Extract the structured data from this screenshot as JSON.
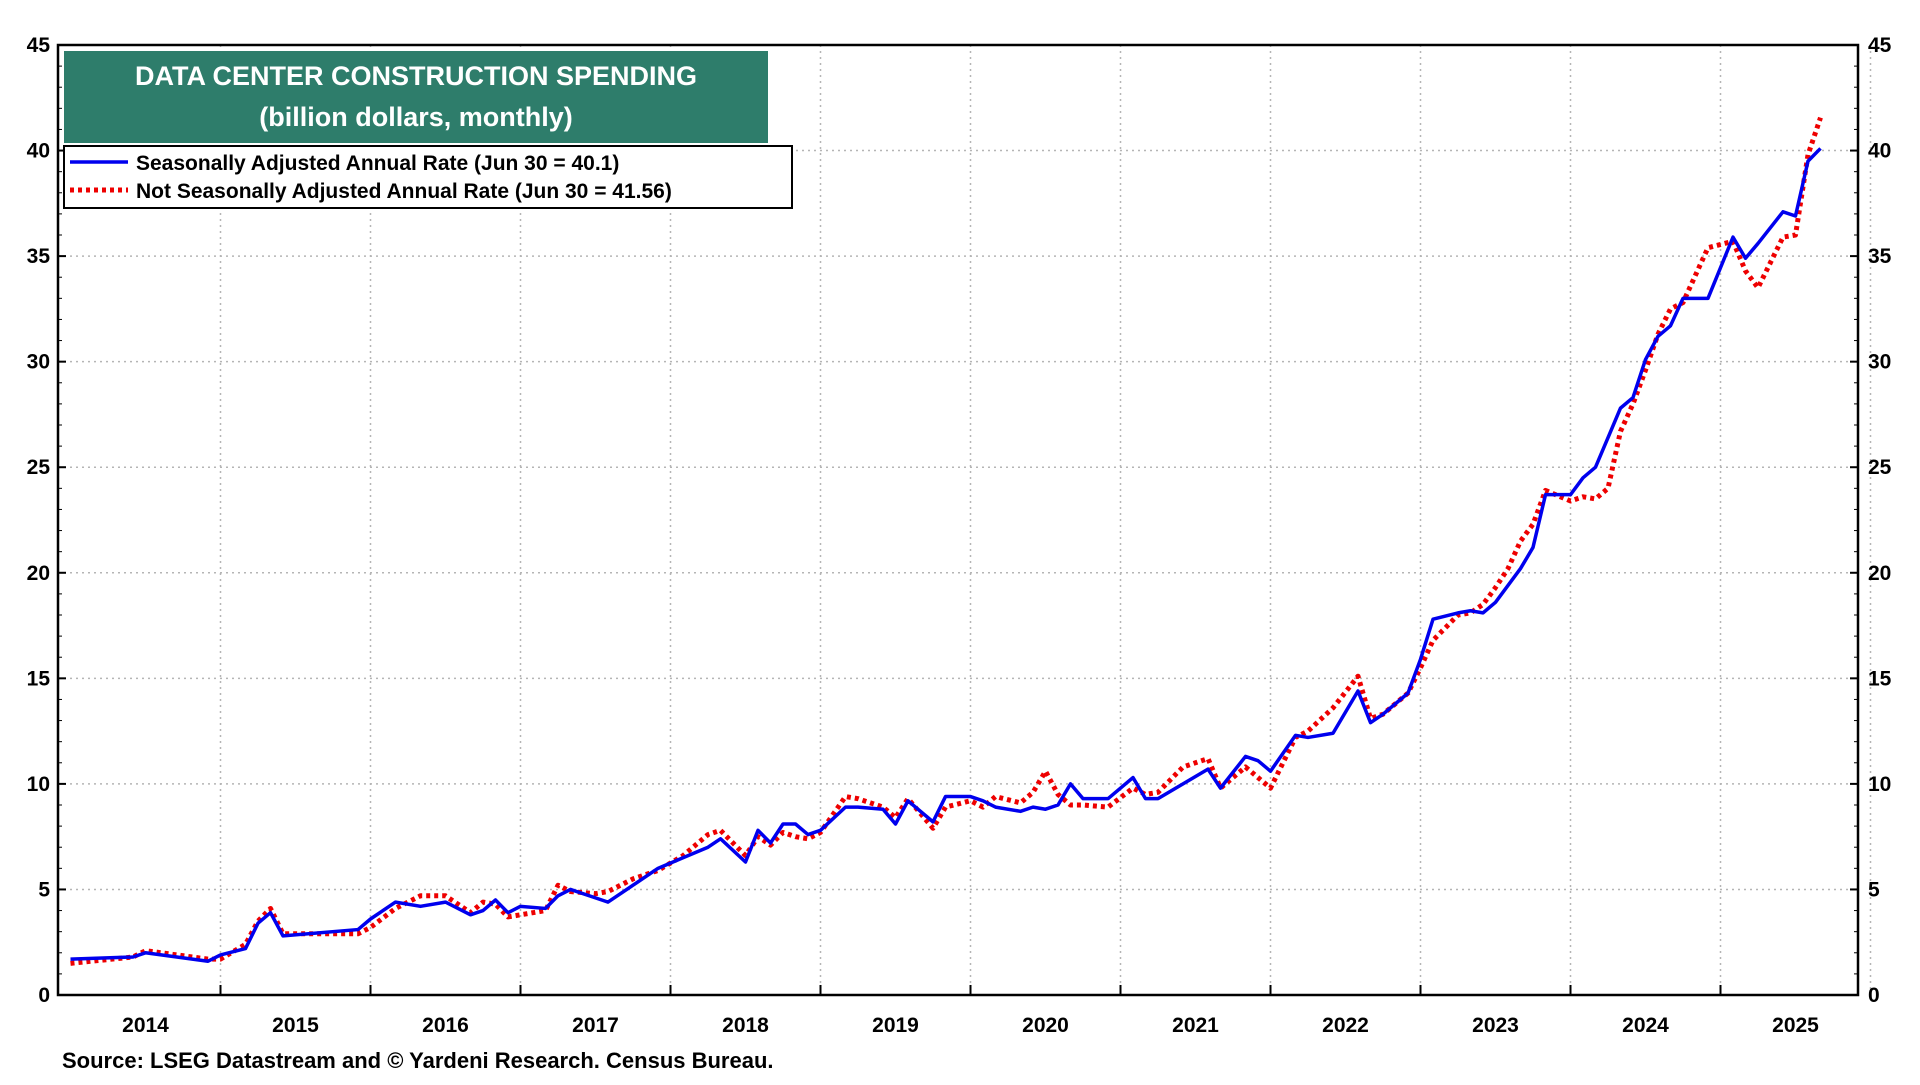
{
  "chart_data": {
    "type": "line",
    "title": "DATA CENTER CONSTRUCTION SPENDING",
    "subtitle": "(billion dollars, monthly)",
    "xlabel": "",
    "ylabel": "",
    "ylim": [
      0,
      45
    ],
    "yticks": [
      0,
      5,
      10,
      15,
      20,
      25,
      30,
      35,
      40,
      45
    ],
    "xlim": [
      "2013-12",
      "2025-12"
    ],
    "x_tick_labels": [
      "2014",
      "2015",
      "2016",
      "2017",
      "2018",
      "2019",
      "2020",
      "2021",
      "2022",
      "2023",
      "2024",
      "2025"
    ],
    "grid": true,
    "legend_position": "top-left",
    "source": "Source: LSEG Datastream and © Yardeni Research. Census Bureau.",
    "colors": {
      "title_box": "#2e7d6b",
      "sa_line": "#0000ee",
      "nsa_line": "#ee0000"
    },
    "series": [
      {
        "name": "Seasonally Adjusted Annual Rate (Jun 30 = 40.1)",
        "style": "solid",
        "x": [
          "2014-01",
          "2014-06",
          "2014-07",
          "2014-12",
          "2015-01",
          "2015-03",
          "2015-04",
          "2015-05",
          "2015-06",
          "2015-12",
          "2016-01",
          "2016-03",
          "2016-05",
          "2016-07",
          "2016-09",
          "2016-10",
          "2016-11",
          "2016-12",
          "2017-01",
          "2017-03",
          "2017-04",
          "2017-05",
          "2017-07",
          "2017-08",
          "2017-10",
          "2017-12",
          "2018-02",
          "2018-04",
          "2018-05",
          "2018-07",
          "2018-08",
          "2018-09",
          "2018-10",
          "2018-11",
          "2018-12",
          "2019-01",
          "2019-03",
          "2019-04",
          "2019-06",
          "2019-07",
          "2019-08",
          "2019-10",
          "2019-11",
          "2020-01",
          "2020-02",
          "2020-03",
          "2020-05",
          "2020-06",
          "2020-07",
          "2020-08",
          "2020-09",
          "2020-10",
          "2020-12",
          "2021-02",
          "2021-03",
          "2021-04",
          "2021-06",
          "2021-08",
          "2021-09",
          "2021-11",
          "2021-12",
          "2022-01",
          "2022-03",
          "2022-04",
          "2022-06",
          "2022-08",
          "2022-09",
          "2022-10",
          "2022-12",
          "2023-01",
          "2023-02",
          "2023-04",
          "2023-05",
          "2023-06",
          "2023-07",
          "2023-08",
          "2023-09",
          "2023-10",
          "2023-11",
          "2024-01",
          "2024-02",
          "2024-03",
          "2024-04",
          "2024-05",
          "2024-06",
          "2024-07",
          "2024-08",
          "2024-09",
          "2024-10",
          "2024-12",
          "2025-02",
          "2025-03",
          "2025-04",
          "2025-06"
        ],
        "values": [
          1.7,
          1.8,
          2.0,
          1.6,
          1.9,
          2.2,
          3.4,
          3.9,
          2.8,
          3.1,
          3.6,
          4.4,
          4.2,
          4.4,
          3.8,
          4.0,
          4.5,
          3.9,
          4.2,
          4.1,
          4.7,
          5.0,
          4.6,
          4.4,
          5.2,
          6.0,
          6.5,
          7.0,
          7.4,
          6.3,
          7.8,
          7.2,
          8.1,
          8.1,
          7.6,
          7.8,
          8.9,
          8.9,
          8.8,
          8.1,
          9.2,
          8.2,
          9.4,
          9.4,
          9.2,
          8.9,
          8.7,
          8.9,
          8.8,
          9.0,
          10.0,
          9.3,
          9.3,
          10.3,
          9.3,
          9.3,
          10.0,
          10.7,
          9.8,
          11.3,
          11.1,
          10.6,
          12.3,
          12.2,
          12.4,
          14.4,
          12.9,
          13.3,
          14.3,
          15.9,
          17.8,
          18.1,
          18.2,
          18.1,
          18.6,
          19.4,
          20.2,
          21.2,
          23.7,
          23.7,
          24.5,
          25.0,
          26.4,
          27.8,
          28.3,
          30.1,
          31.2,
          31.7,
          33.0,
          33.0,
          35.9,
          34.9,
          35.6,
          37.1
        ],
        "values_tail_note": "",
        "tail_x": [
          "2025-07",
          "2025-08",
          "2025-09"
        ],
        "tail_values": [
          36.9,
          39.5,
          40.1
        ]
      },
      {
        "name": "Not Seasonally Adjusted Annual Rate (Jun 30 = 41.56)",
        "style": "dotted",
        "x": [
          "2014-01",
          "2014-06",
          "2014-07",
          "2014-12",
          "2015-01",
          "2015-03",
          "2015-04",
          "2015-05",
          "2015-06",
          "2015-12",
          "2016-01",
          "2016-03",
          "2016-05",
          "2016-07",
          "2016-09",
          "2016-10",
          "2016-11",
          "2016-12",
          "2017-01",
          "2017-03",
          "2017-04",
          "2017-05",
          "2017-07",
          "2017-08",
          "2017-10",
          "2017-12",
          "2018-02",
          "2018-04",
          "2018-05",
          "2018-07",
          "2018-08",
          "2018-09",
          "2018-10",
          "2018-11",
          "2018-12",
          "2019-01",
          "2019-03",
          "2019-04",
          "2019-06",
          "2019-07",
          "2019-08",
          "2019-10",
          "2019-11",
          "2020-01",
          "2020-02",
          "2020-03",
          "2020-05",
          "2020-06",
          "2020-07",
          "2020-08",
          "2020-09",
          "2020-10",
          "2020-12",
          "2021-02",
          "2021-03",
          "2021-04",
          "2021-06",
          "2021-08",
          "2021-09",
          "2021-11",
          "2021-12",
          "2022-01",
          "2022-03",
          "2022-04",
          "2022-06",
          "2022-08",
          "2022-09",
          "2022-10",
          "2022-12",
          "2023-01",
          "2023-02",
          "2023-04",
          "2023-05",
          "2023-06",
          "2023-07",
          "2023-08",
          "2023-09",
          "2023-10",
          "2023-11",
          "2024-01",
          "2024-02",
          "2024-03",
          "2024-04",
          "2024-05",
          "2024-06",
          "2024-07",
          "2024-08",
          "2024-09",
          "2024-10",
          "2024-12",
          "2025-02",
          "2025-03",
          "2025-04",
          "2025-06"
        ],
        "values": [
          1.5,
          1.8,
          2.1,
          1.7,
          1.7,
          2.4,
          3.5,
          4.1,
          2.9,
          2.9,
          3.2,
          4.1,
          4.7,
          4.7,
          3.9,
          4.4,
          4.3,
          3.7,
          3.8,
          4.0,
          5.2,
          4.9,
          4.8,
          4.9,
          5.5,
          5.9,
          6.6,
          7.6,
          7.8,
          6.6,
          7.5,
          7.1,
          7.7,
          7.5,
          7.4,
          7.7,
          9.4,
          9.3,
          8.9,
          8.4,
          9.3,
          7.9,
          8.9,
          9.2,
          8.9,
          9.4,
          9.1,
          9.6,
          10.6,
          9.5,
          9.0,
          9.0,
          8.9,
          9.8,
          9.5,
          9.6,
          10.8,
          11.2,
          9.8,
          10.8,
          10.3,
          9.8,
          12.2,
          12.5,
          13.6,
          15.1,
          13.1,
          13.3,
          14.3,
          15.5,
          16.8,
          18.0,
          18.1,
          18.5,
          19.3,
          20.2,
          21.5,
          22.3,
          23.9,
          23.4,
          23.6,
          23.5,
          24.0,
          26.7,
          28.0,
          29.6,
          31.3,
          32.5,
          32.8,
          35.4,
          35.7,
          34.3,
          33.5,
          35.9
        ],
        "tail_x": [
          "2025-07",
          "2025-08",
          "2025-09"
        ],
        "tail_values": [
          36.0,
          39.8,
          41.56
        ]
      }
    ]
  }
}
